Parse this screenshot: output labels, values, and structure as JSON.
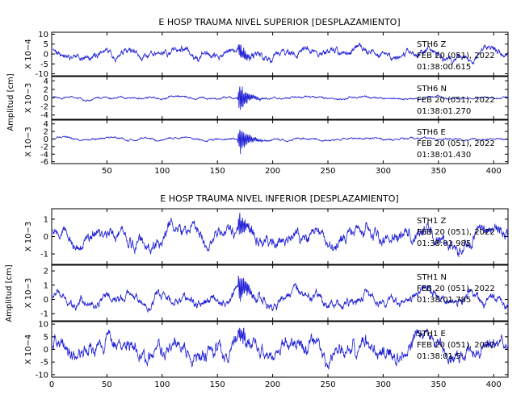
{
  "line_color": "#1f1fd6",
  "axis_color": "#000000",
  "chart_data": [
    {
      "type": "line",
      "title": "E HOSP TRAUMA NIVEL SUPERIOR [DESPLAZAMIENTO]",
      "ylabel": "Amplitud [cm]",
      "xlim": [
        0,
        413
      ],
      "x_ticks": [
        50,
        100,
        150,
        200,
        250,
        300,
        350,
        400
      ],
      "show_x_tick_labels": true,
      "panels": [
        {
          "station": "STH6",
          "component": "Z",
          "date": "FEB 20 (051), 2022",
          "time": "01:38:00.615",
          "scale": "X 10−4",
          "yticks": [
            -10,
            -5,
            0,
            5,
            10
          ],
          "ylim": [
            -11,
            11
          ],
          "noise_amp": 2.6,
          "event_x": 170,
          "event_amp": 5.0,
          "seed": 11
        },
        {
          "station": "STH6",
          "component": "N",
          "date": "FEB 20 (051), 2022",
          "time": "01:38:01.270",
          "scale": "X 10−3",
          "yticks": [
            -4,
            -2,
            0,
            2,
            4
          ],
          "ylim": [
            -5,
            5
          ],
          "noise_amp": 0.35,
          "event_x": 170,
          "event_amp": 4.0,
          "seed": 23
        },
        {
          "station": "STH6",
          "component": "E",
          "date": "FEB 20 (051), 2022",
          "time": "01:38:01.430",
          "scale": "X 10−3",
          "yticks": [
            -6,
            -4,
            -2,
            0,
            2,
            4
          ],
          "ylim": [
            -6.5,
            5
          ],
          "noise_amp": 0.4,
          "event_x": 170,
          "event_amp": 4.8,
          "seed": 37
        }
      ]
    },
    {
      "type": "line",
      "title": "E HOSP TRAUMA NIVEL INFERIOR [DESPLAZAMIENTO]",
      "ylabel": "Amplitud [cm]",
      "xlim": [
        0,
        413
      ],
      "x_ticks": [
        0,
        50,
        100,
        150,
        200,
        250,
        300,
        350,
        400
      ],
      "show_x_tick_labels": true,
      "panels": [
        {
          "station": "STH1",
          "component": "Z",
          "date": "FEB 20 (051), 2022",
          "time": "01:38:01.985",
          "scale": "X 10−3",
          "yticks": [
            -1,
            0,
            1
          ],
          "ylim": [
            -1.6,
            1.6
          ],
          "noise_amp": 0.55,
          "event_x": 170,
          "event_amp": 0.8,
          "seed": 5
        },
        {
          "station": "STH1",
          "component": "N",
          "date": "FEB 20 (051), 2022",
          "time": "01:38:01.785",
          "scale": "X 10−3",
          "yticks": [
            -1,
            0,
            1,
            2
          ],
          "ylim": [
            -1.5,
            2.4
          ],
          "noise_amp": 0.5,
          "event_x": 170,
          "event_amp": 1.3,
          "seed": 19
        },
        {
          "station": "STH1",
          "component": "E",
          "date": "FEB 20 (051), 2022",
          "time": "01:38:01.5",
          "scale": "X 10−4",
          "yticks": [
            -10,
            -5,
            0,
            5,
            10
          ],
          "ylim": [
            -11,
            11
          ],
          "noise_amp": 4.5,
          "event_x": 170,
          "event_amp": 4.0,
          "seed": 41
        }
      ]
    }
  ]
}
